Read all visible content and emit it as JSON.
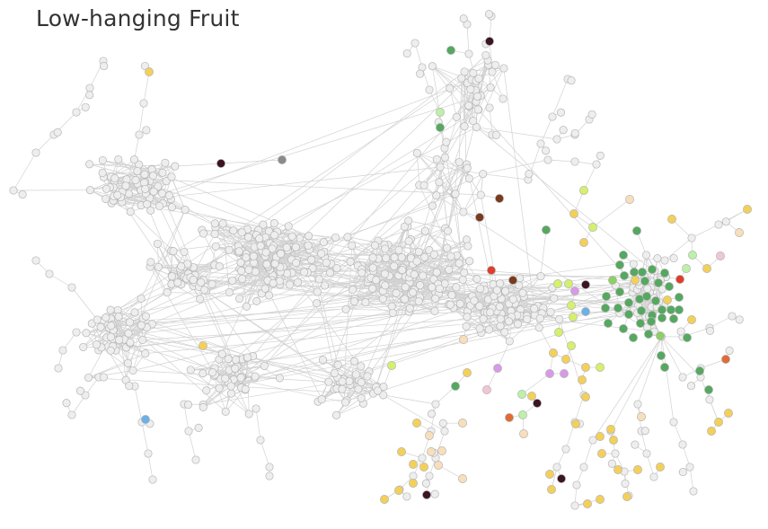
{
  "title": "Low-hanging Fruit",
  "palette": {
    "base": "#eeeeee",
    "green": "#55a860",
    "lightgreen": "#8ccf63",
    "lime": "#d4f06c",
    "mint": "#bdf0a8",
    "yellow": "#f3d059",
    "peach": "#f8deba",
    "darkred": "#3d1424",
    "brown": "#7a3a1e",
    "red": "#e03c2c",
    "orange": "#e06c34",
    "pink": "#f0c6d2",
    "violet": "#d89ae6",
    "blue": "#6cb0e8",
    "gray": "#8a8a8a"
  }
}
